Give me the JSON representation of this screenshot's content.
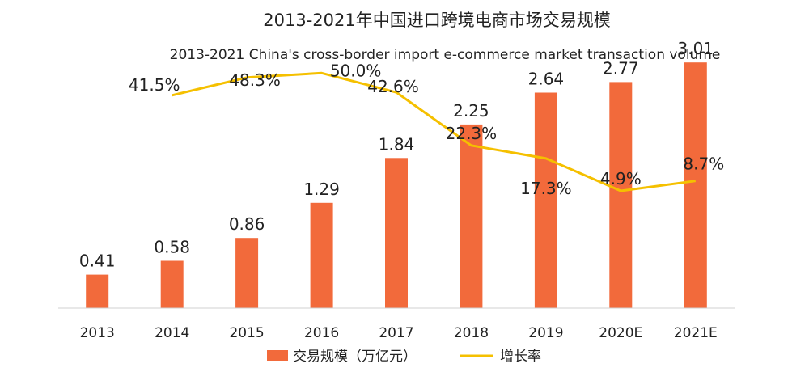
{
  "chart_data": {
    "type": "bar",
    "title": "2013-2021年中国进口跨境电商市场交易规模",
    "subtitle": "2013-2021 China's cross-border import e-commerce market transaction volume",
    "categories": [
      "2013",
      "2014",
      "2015",
      "2016",
      "2017",
      "2018",
      "2019",
      "2020E",
      "2021E"
    ],
    "series": [
      {
        "name": "交易规模（万亿元）",
        "type": "bar",
        "color": "#f26a3b",
        "values": [
          0.41,
          0.58,
          0.86,
          1.29,
          1.84,
          2.25,
          2.64,
          2.77,
          3.01
        ],
        "labels": [
          "0.41",
          "0.58",
          "0.86",
          "1.29",
          "1.84",
          "2.25",
          "2.64",
          "2.77",
          "3.01"
        ]
      },
      {
        "name": "增长率",
        "type": "line",
        "color": "#f5c000",
        "values": [
          null,
          41.5,
          48.3,
          50.0,
          42.6,
          22.3,
          17.3,
          4.9,
          8.7
        ],
        "labels": [
          "",
          "41.5%",
          "48.3%",
          "50.0%",
          "42.6%",
          "22.3%",
          "17.3%",
          "4.9%",
          "8.7%"
        ]
      }
    ],
    "y_left_range": [
      0,
      3.2
    ],
    "y_right_range": [
      -40,
      60
    ],
    "grid": false,
    "legend_position": "bottom"
  }
}
